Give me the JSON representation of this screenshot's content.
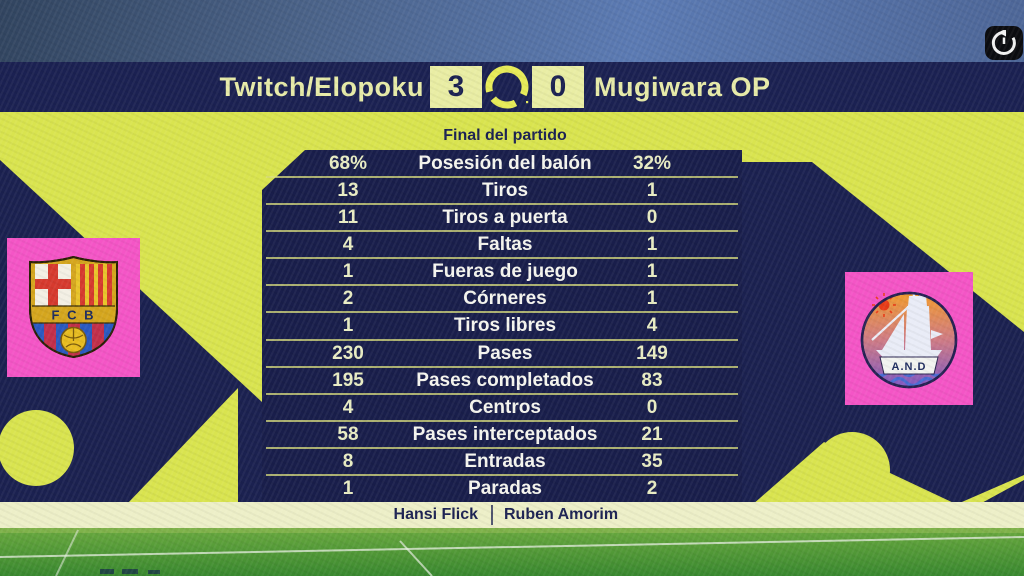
{
  "scoreboard": {
    "home_team": "Twitch/Elopoku",
    "home_score": "3",
    "away_score": "0",
    "away_team": "Mugiwara OP",
    "center_logo": "efootball-logo"
  },
  "status": {
    "label": "Final del partido"
  },
  "stats": {
    "rows": [
      {
        "home": "68%",
        "label": "Posesión del balón",
        "away": "32%"
      },
      {
        "home": "13",
        "label": "Tiros",
        "away": "1"
      },
      {
        "home": "11",
        "label": "Tiros a puerta",
        "away": "0"
      },
      {
        "home": "4",
        "label": "Faltas",
        "away": "1"
      },
      {
        "home": "1",
        "label": "Fueras de juego",
        "away": "1"
      },
      {
        "home": "2",
        "label": "Córneres",
        "away": "1"
      },
      {
        "home": "1",
        "label": "Tiros libres",
        "away": "4"
      },
      {
        "home": "230",
        "label": "Pases",
        "away": "149"
      },
      {
        "home": "195",
        "label": "Pases completados",
        "away": "83"
      },
      {
        "home": "4",
        "label": "Centros",
        "away": "0"
      },
      {
        "home": "58",
        "label": "Pases interceptados",
        "away": "21"
      },
      {
        "home": "8",
        "label": "Entradas",
        "away": "35"
      },
      {
        "home": "1",
        "label": "Paradas",
        "away": "2"
      }
    ]
  },
  "managers": {
    "home": "Hansi Flick",
    "away": "Ruben Amorim"
  },
  "badges": {
    "home_crest_text": "F C B",
    "away_badge_text": "A.N.D"
  },
  "colors": {
    "navy": "#1b2152",
    "yellow": "#d9e44f",
    "score_box": "#e9eda4",
    "pink": "#f455c6",
    "pale_strip": "#edefc8",
    "pitch_green": "#4d9c3a",
    "stat_value_text": "#e9edc4",
    "stat_label_text": "#f6f6ef",
    "top_blue": "#5b7ab3"
  }
}
